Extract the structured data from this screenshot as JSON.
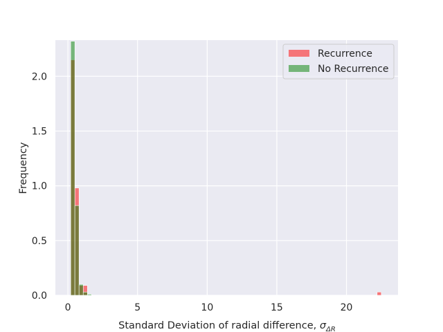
{
  "chart_data": {
    "type": "bar",
    "title": "",
    "xlabel": "Standard Deviation of radial difference, ",
    "xlabel_symbol": "σ",
    "xlabel_subscript": "ΔR",
    "ylabel": "Frequency",
    "xlim": [
      -0.9,
      23.7
    ],
    "ylim": [
      0,
      2.33
    ],
    "xticks": [
      0,
      5,
      10,
      15,
      20
    ],
    "yticks": [
      0.0,
      0.5,
      1.0,
      1.5,
      2.0
    ],
    "xtick_labels": [
      "0",
      "5",
      "10",
      "15",
      "20"
    ],
    "ytick_labels": [
      "0.0",
      "0.5",
      "1.0",
      "1.5",
      "2.0"
    ],
    "grid": true,
    "legend_placement": "top-right",
    "bin_width": 0.3,
    "series": [
      {
        "name": "Recurrence",
        "color": "#ff0000",
        "bins": [
          {
            "x0": 0.2,
            "x1": 0.5,
            "value": 2.15
          },
          {
            "x0": 0.5,
            "x1": 0.8,
            "value": 0.98
          },
          {
            "x0": 0.8,
            "x1": 1.1,
            "value": 0.09
          },
          {
            "x0": 1.1,
            "x1": 1.4,
            "value": 0.09
          },
          {
            "x0": 22.2,
            "x1": 22.5,
            "value": 0.03
          }
        ]
      },
      {
        "name": "No Recurrence",
        "color": "#008000",
        "bins": [
          {
            "x0": 0.2,
            "x1": 0.5,
            "value": 2.32
          },
          {
            "x0": 0.5,
            "x1": 0.8,
            "value": 0.82
          },
          {
            "x0": 0.8,
            "x1": 1.1,
            "value": 0.1
          },
          {
            "x0": 1.1,
            "x1": 1.4,
            "value": 0.03
          },
          {
            "x0": 1.4,
            "x1": 1.7,
            "value": 0.01
          }
        ]
      }
    ]
  }
}
